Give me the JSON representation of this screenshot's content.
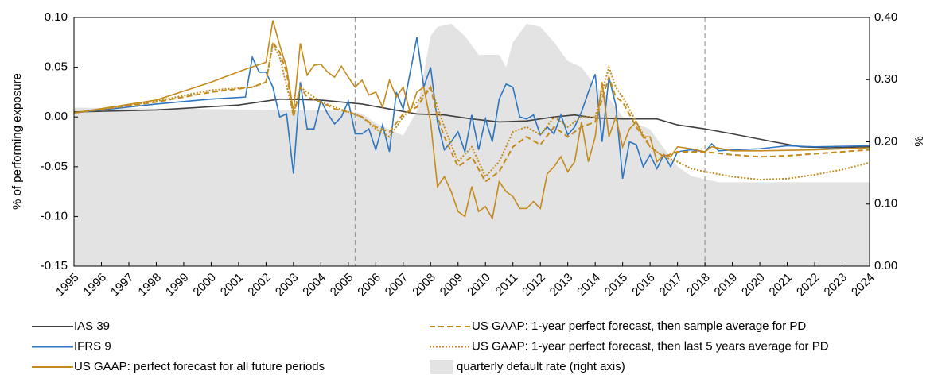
{
  "chart_data": {
    "type": "line",
    "y_label": "% of performing exposure",
    "y2_label": "%",
    "xlim": [
      1995,
      2024
    ],
    "xticks": [
      1995,
      1996,
      1997,
      1998,
      1999,
      2000,
      2001,
      2002,
      2003,
      2004,
      2005,
      2006,
      2007,
      2008,
      2009,
      2010,
      2011,
      2012,
      2013,
      2014,
      2015,
      2016,
      2017,
      2018,
      2019,
      2020,
      2021,
      2022,
      2023,
      2024
    ],
    "ylim": [
      -0.15,
      0.1
    ],
    "yticks": [
      {
        "value": -0.15,
        "label": "-0.15"
      },
      {
        "value": -0.1,
        "label": "-0.10"
      },
      {
        "value": -0.05,
        "label": "-0.05"
      },
      {
        "value": 0,
        "label": "0.00"
      },
      {
        "value": 0.05,
        "label": "0.05"
      },
      {
        "value": 0.1,
        "label": "0.10"
      }
    ],
    "y2lim": [
      0,
      0.4
    ],
    "y2ticks": [
      {
        "value": 0,
        "label": "0.00"
      },
      {
        "value": 0.1,
        "label": "0.10"
      },
      {
        "value": 0.2,
        "label": "0.20"
      },
      {
        "value": 0.3,
        "label": "0.30"
      },
      {
        "value": 0.4,
        "label": "0.40"
      }
    ],
    "reference_lines": [
      2005.25,
      2018
    ],
    "series": [
      {
        "name": "quarterly default rate (right axis)",
        "type": "area",
        "axis": "y2",
        "color": "#e3e3e3",
        "x": [
          1995,
          2005,
          2005.5,
          2006,
          2007,
          2007.5,
          2008,
          2008.25,
          2008.75,
          2009.25,
          2009.75,
          2010.5,
          2010.75,
          2011,
          2011.5,
          2012,
          2012.5,
          2013,
          2013.5,
          2014,
          2014.5,
          2015,
          2016,
          2016.5,
          2017,
          2017.5,
          2018,
          2018.5,
          2024
        ],
        "values": [
          0.255,
          0.25,
          0.245,
          0.23,
          0.21,
          0.25,
          0.37,
          0.385,
          0.39,
          0.37,
          0.34,
          0.34,
          0.32,
          0.36,
          0.39,
          0.385,
          0.36,
          0.33,
          0.32,
          0.29,
          0.27,
          0.24,
          0.22,
          0.19,
          0.16,
          0.145,
          0.14,
          0.135,
          0.135
        ]
      },
      {
        "name": "IAS 39",
        "color": "#404040",
        "dash": "solid",
        "x": [
          1995,
          1998,
          2001,
          2002.5,
          2004,
          2005.5,
          2006.5,
          2007.5,
          2008.5,
          2009.5,
          2010.5,
          2011.5,
          2012.5,
          2013.25,
          2014,
          2015,
          2016.25,
          2017,
          2018,
          2019,
          2020.5,
          2021.5,
          2022.5,
          2024
        ],
        "values": [
          0.005,
          0.007,
          0.012,
          0.018,
          0.017,
          0.013,
          0.008,
          0.003,
          0.002,
          -0.002,
          -0.005,
          -0.004,
          0,
          0.002,
          -0.001,
          -0.002,
          -0.002,
          -0.008,
          -0.012,
          -0.017,
          -0.025,
          -0.03,
          -0.031,
          -0.03
        ]
      },
      {
        "name": "IFRS 9",
        "color": "#2e75c0",
        "dash": "solid",
        "x": [
          1995,
          1998,
          2000,
          2001.25,
          2001.5,
          2001.75,
          2002,
          2002.25,
          2002.5,
          2002.75,
          2003,
          2003.25,
          2003.5,
          2003.75,
          2004,
          2004.25,
          2004.5,
          2004.75,
          2005,
          2005.25,
          2005.5,
          2005.75,
          2006,
          2006.25,
          2006.5,
          2006.75,
          2007,
          2007.5,
          2007.75,
          2008,
          2008.25,
          2008.5,
          2008.75,
          2009,
          2009.25,
          2009.5,
          2009.75,
          2010,
          2010.25,
          2010.5,
          2010.75,
          2011,
          2011.25,
          2011.5,
          2011.75,
          2012,
          2012.25,
          2012.5,
          2012.75,
          2013,
          2013.25,
          2013.5,
          2013.75,
          2014,
          2014.25,
          2014.5,
          2014.75,
          2015,
          2015.25,
          2015.5,
          2015.75,
          2016,
          2016.25,
          2016.5,
          2016.75,
          2017,
          2017.5,
          2018,
          2018.25,
          2018.5,
          2019,
          2020,
          2021,
          2022,
          2024
        ],
        "values": [
          0.004,
          0.013,
          0.018,
          0.02,
          0.06,
          0.045,
          0.045,
          0.03,
          0,
          0.003,
          -0.057,
          0.035,
          -0.012,
          -0.012,
          0.017,
          0.003,
          -0.007,
          0,
          0.016,
          -0.017,
          -0.017,
          -0.012,
          -0.033,
          -0.008,
          -0.035,
          0.025,
          0.008,
          0.08,
          0.03,
          0.05,
          -0.005,
          -0.033,
          -0.025,
          -0.015,
          -0.035,
          0.002,
          -0.033,
          -0.002,
          -0.025,
          0.018,
          0.033,
          0.03,
          0,
          -0.002,
          0.002,
          -0.018,
          -0.01,
          -0.017,
          0.002,
          -0.018,
          -0.01,
          0.005,
          0.025,
          0.043,
          -0.025,
          0.04,
          0.012,
          -0.062,
          -0.025,
          -0.028,
          -0.05,
          -0.038,
          -0.052,
          -0.038,
          -0.05,
          -0.035,
          -0.033,
          -0.035,
          -0.027,
          -0.034,
          -0.033,
          -0.032,
          -0.029,
          -0.03,
          -0.029
        ]
      },
      {
        "name": "US GAAP: perfect forecast for all future periods",
        "color": "#c48a1c",
        "dash": "solid",
        "x": [
          1995,
          1998,
          2000,
          2001.25,
          2002,
          2002.25,
          2002.5,
          2002.75,
          2003,
          2003.25,
          2003.5,
          2003.75,
          2004,
          2004.25,
          2004.5,
          2004.75,
          2005,
          2005.25,
          2005.5,
          2005.75,
          2006,
          2006.25,
          2006.5,
          2006.75,
          2007,
          2007.25,
          2007.5,
          2007.75,
          2008,
          2008.25,
          2008.5,
          2008.75,
          2009,
          2009.25,
          2009.5,
          2009.75,
          2010,
          2010.25,
          2010.5,
          2010.75,
          2011,
          2011.25,
          2011.5,
          2011.75,
          2012,
          2012.25,
          2012.5,
          2012.75,
          2013,
          2013.25,
          2013.5,
          2013.75,
          2014,
          2014.25,
          2014.5,
          2014.75,
          2015,
          2015.25,
          2015.5,
          2015.75,
          2016,
          2016.25,
          2016.5,
          2016.75,
          2017,
          2017.5,
          2018,
          2018.25,
          2019,
          2020,
          2022,
          2024
        ],
        "values": [
          0.004,
          0.017,
          0.035,
          0.048,
          0.055,
          0.097,
          0.072,
          0.05,
          0.005,
          0.074,
          0.042,
          0.052,
          0.053,
          0.045,
          0.04,
          0.051,
          0.04,
          0.03,
          0.037,
          0.022,
          0.025,
          0.01,
          0.037,
          0.02,
          0.03,
          0.005,
          0.025,
          0.03,
          -0.005,
          -0.07,
          -0.06,
          -0.075,
          -0.095,
          -0.1,
          -0.07,
          -0.095,
          -0.09,
          -0.102,
          -0.065,
          -0.075,
          -0.08,
          -0.092,
          -0.092,
          -0.085,
          -0.092,
          -0.057,
          -0.05,
          -0.04,
          -0.055,
          -0.045,
          -0.005,
          -0.045,
          -0.02,
          0.035,
          -0.02,
          0,
          -0.03,
          -0.012,
          -0.005,
          -0.02,
          -0.02,
          -0.045,
          -0.038,
          -0.04,
          -0.03,
          -0.032,
          -0.035,
          -0.03,
          -0.034,
          -0.034,
          -0.033,
          -0.031
        ]
      },
      {
        "name": "US GAAP: 1-year perfect forecast, then sample average for PD",
        "color": "#c48a1c",
        "dash": "dashed",
        "x": [
          1995,
          1998,
          2000,
          2001.5,
          2002,
          2002.25,
          2002.5,
          2002.75,
          2003,
          2003.25,
          2003.5,
          2004,
          2004.5,
          2005,
          2005.5,
          2006,
          2006.5,
          2007,
          2007.5,
          2008,
          2008.25,
          2008.5,
          2009,
          2009.5,
          2010,
          2010.5,
          2011,
          2011.5,
          2012,
          2012.5,
          2013,
          2013.5,
          2014,
          2014.5,
          2014.75,
          2015,
          2015.5,
          2016,
          2016.5,
          2017,
          2018,
          2019,
          2020,
          2021,
          2022,
          2024
        ],
        "values": [
          0.004,
          0.015,
          0.025,
          0.03,
          0.035,
          0.075,
          0.065,
          0.045,
          0,
          0.03,
          0.02,
          0.015,
          0.008,
          0.005,
          0,
          -0.01,
          -0.015,
          0.003,
          0.01,
          0.03,
          0,
          -0.02,
          -0.05,
          -0.04,
          -0.065,
          -0.055,
          -0.03,
          -0.02,
          -0.028,
          -0.01,
          -0.02,
          -0.01,
          -0.005,
          0.04,
          0.02,
          0.015,
          -0.01,
          -0.03,
          -0.04,
          -0.035,
          -0.035,
          -0.038,
          -0.04,
          -0.039,
          -0.037,
          -0.033
        ]
      },
      {
        "name": "US GAAP: 1-year perfect forecast, then last 5 years average for PD",
        "color": "#c48a1c",
        "dash": "dotted",
        "x": [
          1995,
          1998,
          2000,
          2001.5,
          2002,
          2002.25,
          2002.5,
          2003,
          2003.25,
          2004,
          2005,
          2005.5,
          2006,
          2006.5,
          2007,
          2007.5,
          2008,
          2008.5,
          2009,
          2009.5,
          2010,
          2010.5,
          2011,
          2011.5,
          2012,
          2012.5,
          2013,
          2013.5,
          2014,
          2014.5,
          2014.75,
          2015,
          2015.5,
          2016,
          2016.5,
          2017,
          2017.5,
          2018,
          2019,
          2020,
          2021,
          2022,
          2023,
          2024
        ],
        "values": [
          0.004,
          0.016,
          0.027,
          0.03,
          0.035,
          0.073,
          0.06,
          0.003,
          0.03,
          0.015,
          0.005,
          0,
          -0.012,
          -0.02,
          0,
          0.015,
          0.03,
          -0.01,
          -0.045,
          -0.03,
          -0.06,
          -0.045,
          -0.015,
          -0.01,
          -0.018,
          0,
          -0.01,
          0,
          0,
          0.05,
          0.03,
          0.02,
          -0.005,
          -0.03,
          -0.04,
          -0.045,
          -0.052,
          -0.055,
          -0.06,
          -0.063,
          -0.062,
          -0.058,
          -0.053,
          -0.046
        ]
      }
    ]
  }
}
